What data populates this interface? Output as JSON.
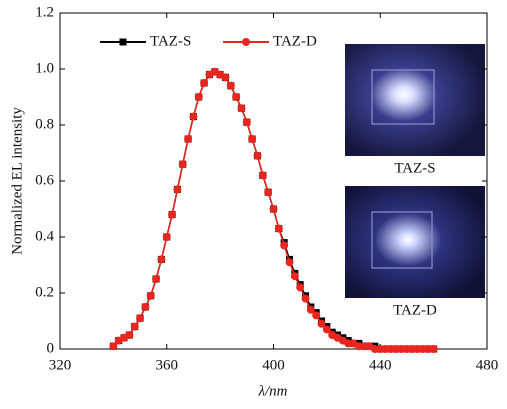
{
  "chart_data": {
    "type": "line",
    "y_label": "Normalized EL intensity",
    "x_label": "λ/nm",
    "x": [
      340,
      342,
      344,
      346,
      348,
      350,
      352,
      354,
      356,
      358,
      360,
      362,
      364,
      366,
      368,
      370,
      372,
      374,
      376,
      378,
      380,
      382,
      384,
      386,
      388,
      390,
      392,
      394,
      396,
      398,
      400,
      402,
      404,
      406,
      408,
      410,
      412,
      414,
      416,
      418,
      420,
      422,
      424,
      426,
      428,
      430,
      432,
      434,
      436,
      438,
      440,
      442,
      444,
      446,
      448,
      450,
      452,
      454,
      456,
      458,
      460
    ],
    "series": [
      {
        "name": "TAZ-S",
        "color": "#000000",
        "marker": "square",
        "values": [
          0.01,
          0.03,
          0.04,
          0.05,
          0.08,
          0.11,
          0.15,
          0.19,
          0.25,
          0.32,
          0.4,
          0.48,
          0.57,
          0.66,
          0.75,
          0.83,
          0.9,
          0.95,
          0.98,
          0.99,
          0.98,
          0.97,
          0.94,
          0.9,
          0.86,
          0.81,
          0.75,
          0.69,
          0.62,
          0.56,
          0.5,
          0.43,
          0.38,
          0.32,
          0.27,
          0.23,
          0.19,
          0.15,
          0.13,
          0.1,
          0.08,
          0.06,
          0.05,
          0.04,
          0.03,
          0.02,
          0.02,
          0.01,
          0.01,
          0.01,
          0,
          0,
          0,
          0,
          0,
          0,
          0,
          0,
          0,
          0,
          0
        ]
      },
      {
        "name": "TAZ-D",
        "color": "#e8261e",
        "marker": "circle",
        "values": [
          0.01,
          0.03,
          0.04,
          0.05,
          0.08,
          0.11,
          0.15,
          0.19,
          0.25,
          0.32,
          0.4,
          0.48,
          0.57,
          0.66,
          0.75,
          0.83,
          0.9,
          0.95,
          0.98,
          0.99,
          0.98,
          0.97,
          0.94,
          0.9,
          0.86,
          0.81,
          0.75,
          0.69,
          0.62,
          0.56,
          0.5,
          0.43,
          0.37,
          0.31,
          0.26,
          0.22,
          0.18,
          0.14,
          0.12,
          0.09,
          0.07,
          0.05,
          0.04,
          0.03,
          0.02,
          0.02,
          0.01,
          0.01,
          0.01,
          0,
          0,
          0,
          0,
          0,
          0,
          0,
          0,
          0,
          0,
          0,
          0
        ]
      }
    ],
    "xlim": [
      320,
      480
    ],
    "xticks": [
      320,
      360,
      400,
      440,
      480
    ],
    "ylim": [
      0,
      1.2
    ],
    "yticks": [
      0,
      0.2,
      0.4,
      0.6,
      0.8,
      {
        "value": 1,
        "label": "1.0"
      },
      1.2
    ],
    "legend": "upper-left",
    "annotations": [
      "TAZ-S",
      "TAZ-D"
    ]
  }
}
